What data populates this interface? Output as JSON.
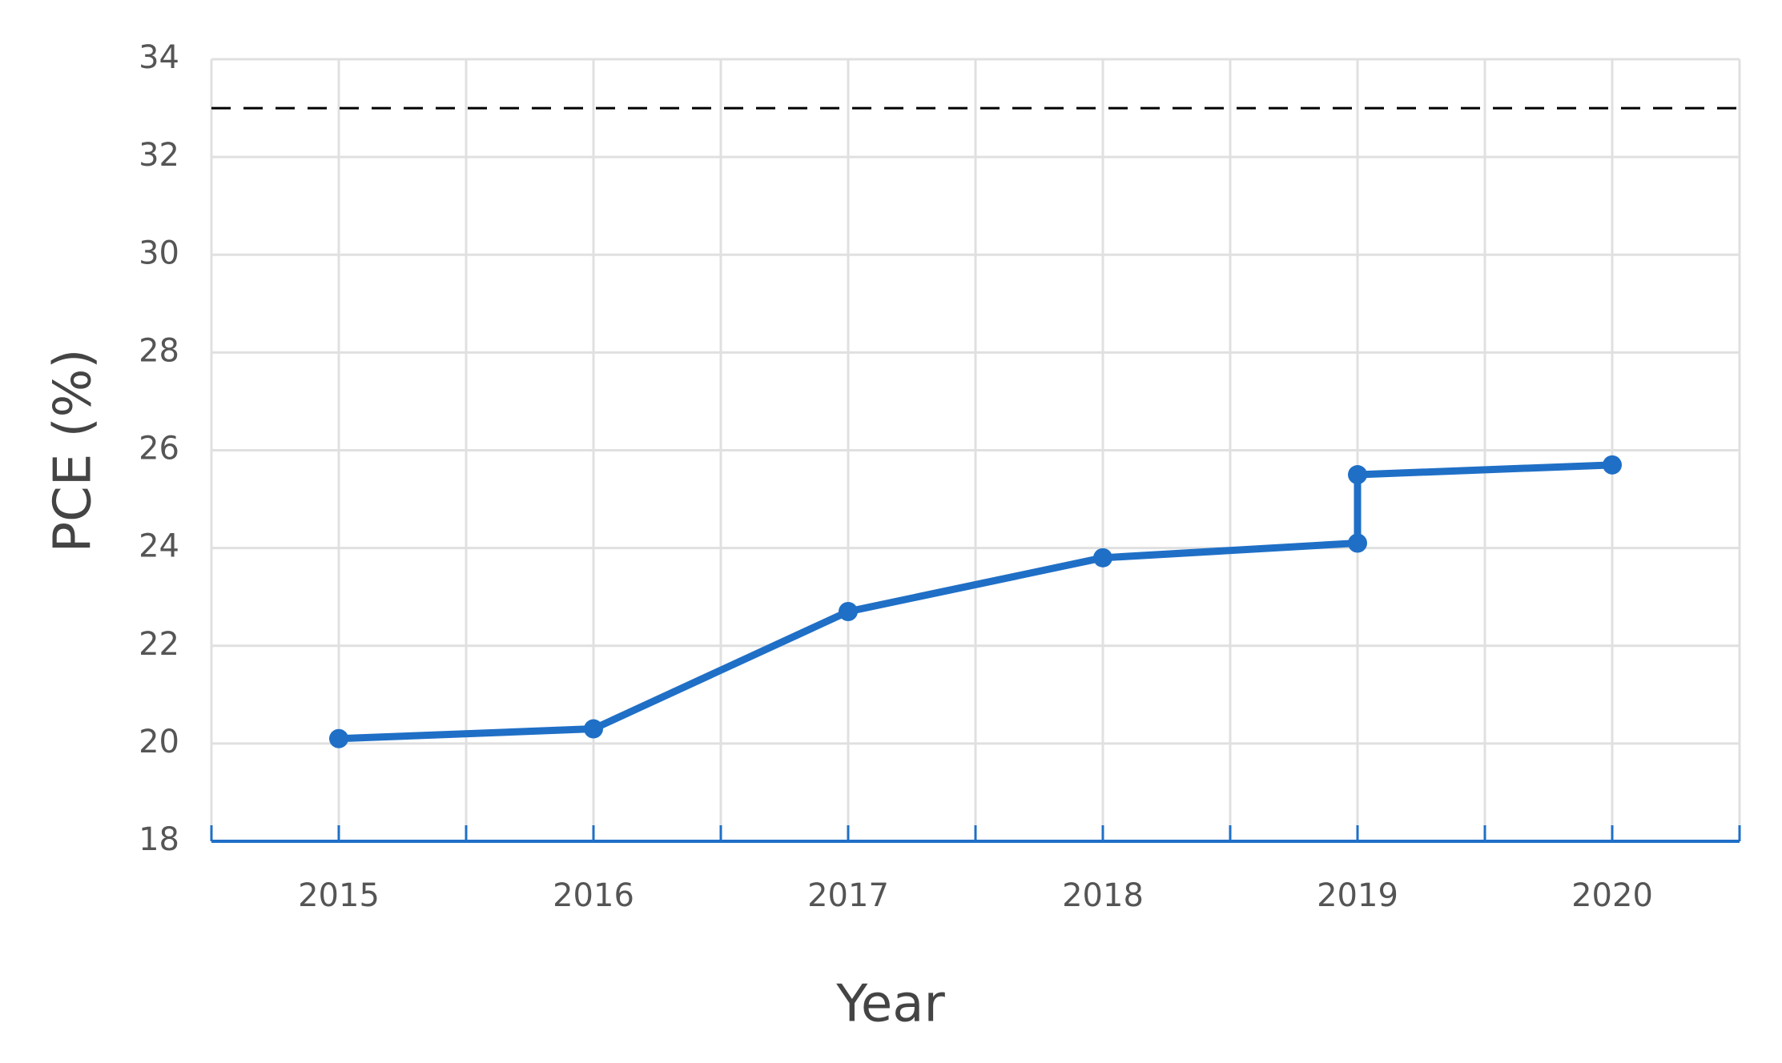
{
  "chart_data": {
    "type": "line",
    "x_label": "Year",
    "y_label": "PCE (%)",
    "x": [
      2015,
      2016,
      2017,
      2018,
      2019,
      2019,
      2020
    ],
    "series": [
      {
        "color": "#1f6fc6",
        "values": [
          20.1,
          20.3,
          22.7,
          23.8,
          24.1,
          25.5,
          25.7
        ]
      }
    ],
    "xlim": [
      2014.5,
      2020.5
    ],
    "xticks": [
      2015,
      2016,
      2017,
      2018,
      2019,
      2020
    ],
    "ylim": [
      18,
      34
    ],
    "yticks": [
      18,
      20,
      22,
      24,
      26,
      28,
      30,
      32,
      34
    ],
    "reference_line": 33,
    "reference_line_color": "#000000",
    "grid": true
  }
}
